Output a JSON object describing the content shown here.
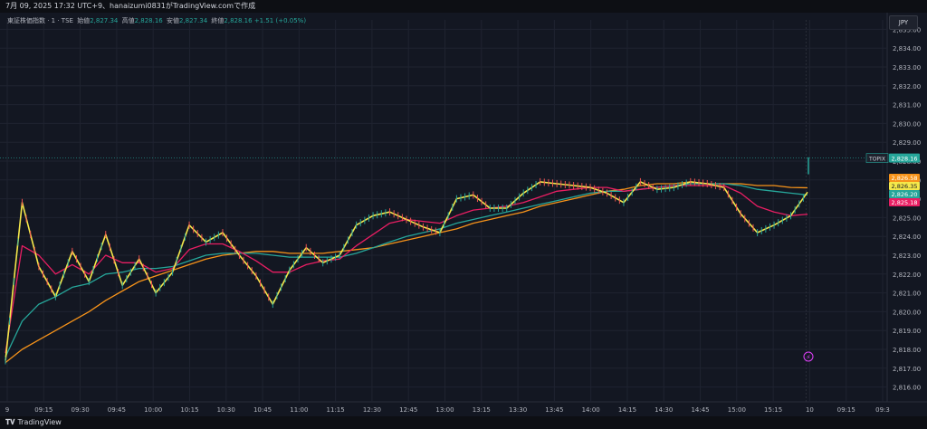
{
  "header": {
    "title": "7月 09, 2025 17:32 UTC+9、hanaizumi0831がTradingView.comで作成"
  },
  "legend": {
    "symbol": "東証株価指数 · 1 · TSE",
    "open_label": "始値",
    "open": "2,827.34",
    "high_label": "高値",
    "high": "2,828.16",
    "low_label": "安値",
    "low": "2,827.34",
    "close_label": "終値",
    "close": "2,828.16",
    "change": "+1.51 (+0.05%)"
  },
  "currency": "JPY",
  "footer": {
    "logo_text": "TradingView"
  },
  "colors": {
    "up": "#26a69a",
    "down": "#ef5350",
    "ma_yellow": "#f5e84a",
    "ma_pink": "#e91e63",
    "ma_teal": "#26a69a",
    "ma_orange": "#f7931a",
    "price_tag": "#26a69a"
  },
  "chart_data": {
    "type": "line",
    "title": "東証株価指数 · 1 · TSE",
    "ylim": [
      2815.5,
      2835.5
    ],
    "y_ticks": [
      "2,835.00",
      "2,834.00",
      "2,833.00",
      "2,832.00",
      "2,831.00",
      "2,830.00",
      "2,829.00",
      "2,828.00",
      "2,827.00",
      "2,826.00",
      "2,825.00",
      "2,824.00",
      "2,823.00",
      "2,822.00",
      "2,821.00",
      "2,820.00",
      "2,819.00",
      "2,818.00",
      "2,817.00",
      "2,816.00"
    ],
    "x_ticks": [
      "9",
      "09:15",
      "09:30",
      "09:45",
      "10:00",
      "10:15",
      "10:30",
      "10:45",
      "11:00",
      "11:15",
      "12:30",
      "12:45",
      "13:00",
      "13:15",
      "13:30",
      "13:45",
      "14:00",
      "14:15",
      "14:30",
      "14:45",
      "15:00",
      "15:15",
      "10",
      "09:15",
      "09:3"
    ],
    "series": [
      {
        "values": [
          2817.4,
          2825.8,
          2822.4,
          2820.8,
          2823.2,
          2821.6,
          2824.1,
          2821.4,
          2822.8,
          2821.0,
          2822.1,
          2824.6,
          2823.7,
          2824.2,
          2823.0,
          2821.9,
          2820.4,
          2822.2,
          2823.4,
          2822.6,
          2823.0,
          2824.6,
          2825.1,
          2825.3,
          2824.9,
          2824.5,
          2824.2,
          2826.0,
          2826.2,
          2825.5,
          2825.5,
          2826.3,
          2826.9,
          2826.8,
          2826.7,
          2826.6,
          2826.3,
          2825.8,
          2826.9,
          2826.5,
          2826.6,
          2826.9,
          2826.8,
          2826.6,
          2825.2,
          2824.2,
          2824.6,
          2825.1,
          2826.35
        ]
      },
      {
        "values": [
          2817.8,
          2823.5,
          2823.0,
          2822.0,
          2822.5,
          2822.0,
          2823.0,
          2822.6,
          2822.6,
          2822.1,
          2822.3,
          2823.3,
          2823.6,
          2823.6,
          2823.2,
          2822.7,
          2822.1,
          2822.1,
          2822.5,
          2822.7,
          2822.8,
          2823.5,
          2824.1,
          2824.7,
          2824.9,
          2824.8,
          2824.7,
          2825.1,
          2825.4,
          2825.5,
          2825.6,
          2825.8,
          2826.1,
          2826.4,
          2826.5,
          2826.6,
          2826.6,
          2826.4,
          2826.5,
          2826.6,
          2826.7,
          2826.7,
          2826.7,
          2826.7,
          2826.3,
          2825.6,
          2825.3,
          2825.1,
          2825.18
        ]
      },
      {
        "values": [
          2817.6,
          2819.5,
          2820.4,
          2820.8,
          2821.3,
          2821.5,
          2822.0,
          2822.1,
          2822.3,
          2822.3,
          2822.4,
          2822.7,
          2823.0,
          2823.1,
          2823.1,
          2823.1,
          2823.0,
          2822.9,
          2822.9,
          2822.9,
          2822.9,
          2823.1,
          2823.4,
          2823.7,
          2824.0,
          2824.2,
          2824.4,
          2824.7,
          2824.9,
          2825.1,
          2825.3,
          2825.5,
          2825.7,
          2825.9,
          2826.1,
          2826.3,
          2826.4,
          2826.4,
          2826.5,
          2826.6,
          2826.7,
          2826.8,
          2826.8,
          2826.8,
          2826.7,
          2826.5,
          2826.4,
          2826.3,
          2826.2
        ]
      },
      {
        "values": [
          2817.3,
          2818.0,
          2818.5,
          2819.0,
          2819.5,
          2820.0,
          2820.6,
          2821.1,
          2821.6,
          2821.9,
          2822.2,
          2822.5,
          2822.8,
          2823.0,
          2823.1,
          2823.2,
          2823.2,
          2823.1,
          2823.1,
          2823.1,
          2823.2,
          2823.3,
          2823.4,
          2823.6,
          2823.8,
          2824.0,
          2824.2,
          2824.4,
          2824.7,
          2824.9,
          2825.1,
          2825.3,
          2825.6,
          2825.8,
          2826.0,
          2826.2,
          2826.4,
          2826.5,
          2826.7,
          2826.8,
          2826.8,
          2826.9,
          2826.8,
          2826.8,
          2826.8,
          2826.7,
          2826.7,
          2826.6,
          2826.58
        ]
      }
    ],
    "last_price": {
      "label": "TOPIX",
      "value": "2,828.16"
    },
    "right_tags": [
      {
        "value": "2,826.58",
        "color": "#f7931a"
      },
      {
        "value": "2,826.35",
        "color": "#f5e84a"
      },
      {
        "value": "2,826.20",
        "color": "#26a69a"
      },
      {
        "value": "2,825.18",
        "color": "#e91e63"
      }
    ],
    "grid": true
  }
}
